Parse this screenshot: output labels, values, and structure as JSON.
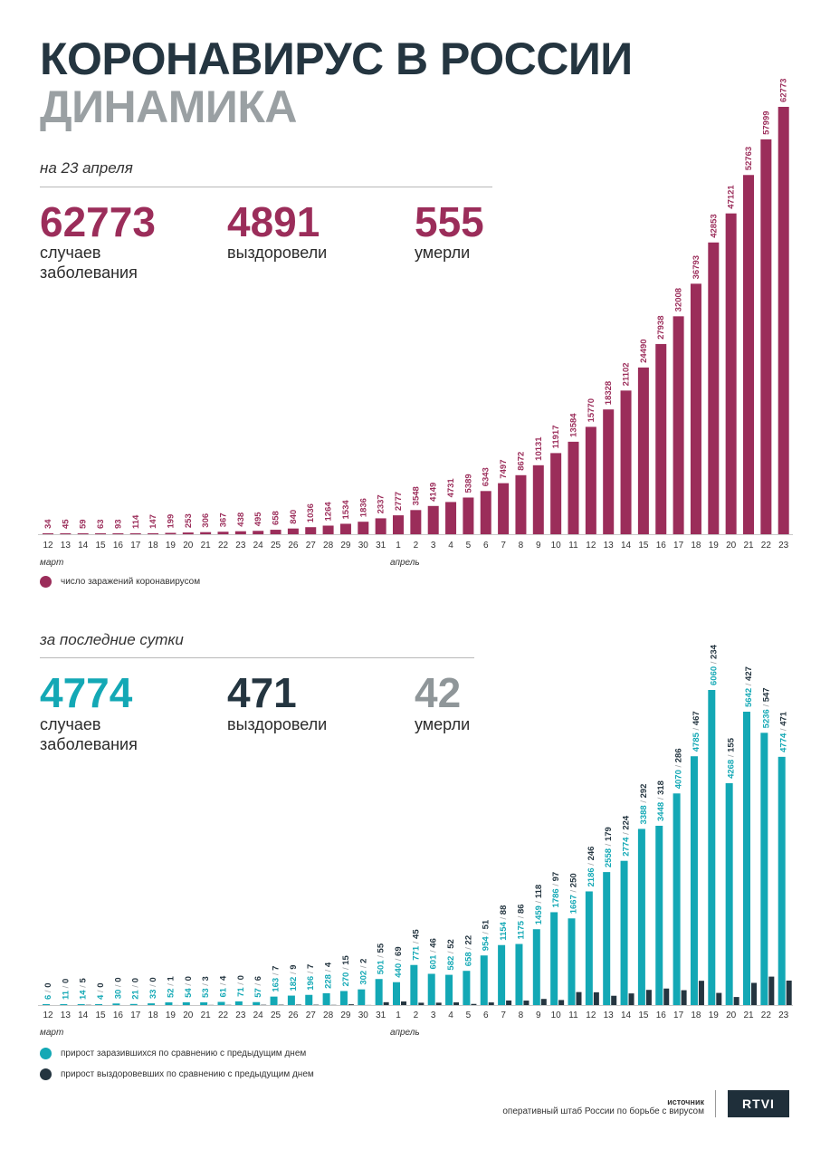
{
  "header": {
    "title": "КОРОНАВИРУС В РОССИИ",
    "subtitle": "ДИНАМИКА"
  },
  "colors": {
    "cases": "#9b2d5a",
    "daily_cases": "#13a8b5",
    "daily_recovered": "#243540",
    "dark": "#243540",
    "gray": "#8f9699"
  },
  "totals": {
    "label": "на 23 апреля",
    "cases_value": "62773",
    "cases_label_1": "случаев",
    "cases_label_2": "заболевания",
    "recovered_value": "4891",
    "recovered_label": "выздоровели",
    "deaths_value": "555",
    "deaths_label": "умерли"
  },
  "daily": {
    "label": "за последние сутки",
    "cases_value": "4774",
    "cases_label_1": "случаев",
    "cases_label_2": "заболевания",
    "recovered_value": "471",
    "recovered_label": "выздоровели",
    "deaths_value": "42",
    "deaths_label": "умерли"
  },
  "chart_data": [
    {
      "type": "bar",
      "categories": [
        "12",
        "13",
        "14",
        "15",
        "16",
        "17",
        "18",
        "19",
        "20",
        "21",
        "22",
        "23",
        "24",
        "25",
        "26",
        "27",
        "28",
        "29",
        "30",
        "31",
        "1",
        "2",
        "3",
        "4",
        "5",
        "6",
        "7",
        "8",
        "9",
        "10",
        "11",
        "12",
        "13",
        "14",
        "15",
        "16",
        "17",
        "18",
        "19",
        "20",
        "21",
        "22",
        "23"
      ],
      "month_labels": [
        "март",
        "апрель"
      ],
      "series": [
        {
          "name": "число заражений коронавирусом",
          "values": [
            34,
            45,
            59,
            63,
            93,
            114,
            147,
            199,
            253,
            306,
            367,
            438,
            495,
            658,
            840,
            1036,
            1264,
            1534,
            1836,
            2337,
            2777,
            3548,
            4149,
            4731,
            5389,
            6343,
            7497,
            8672,
            10131,
            11917,
            13584,
            15770,
            18328,
            21102,
            24490,
            27938,
            32008,
            36793,
            42853,
            47121,
            52763,
            57999,
            62773
          ]
        }
      ],
      "ylim": [
        0,
        62773
      ]
    },
    {
      "type": "bar",
      "categories": [
        "12",
        "13",
        "14",
        "15",
        "16",
        "17",
        "18",
        "19",
        "20",
        "21",
        "22",
        "23",
        "24",
        "25",
        "26",
        "27",
        "28",
        "29",
        "30",
        "31",
        "1",
        "2",
        "3",
        "4",
        "5",
        "6",
        "7",
        "8",
        "9",
        "10",
        "11",
        "12",
        "13",
        "14",
        "15",
        "16",
        "17",
        "18",
        "19",
        "20",
        "21",
        "22",
        "23"
      ],
      "month_labels": [
        "март",
        "апрель"
      ],
      "separator": "/",
      "series": [
        {
          "name": "прирост заразившихся по сравнению с предыдущим днем",
          "values": [
            6,
            11,
            14,
            4,
            30,
            21,
            33,
            52,
            54,
            53,
            61,
            71,
            57,
            163,
            182,
            196,
            228,
            270,
            302,
            501,
            440,
            771,
            601,
            582,
            658,
            954,
            1154,
            1175,
            1459,
            1786,
            1667,
            2186,
            2558,
            2774,
            3388,
            3448,
            4070,
            4785,
            6060,
            4268,
            5642,
            5236,
            4774
          ]
        },
        {
          "name": "прирост выздоровевших по сравнению с предыдущим днем",
          "values": [
            0,
            0,
            5,
            0,
            0,
            0,
            0,
            1,
            0,
            3,
            4,
            0,
            6,
            7,
            9,
            7,
            4,
            15,
            2,
            55,
            69,
            45,
            46,
            52,
            22,
            51,
            88,
            86,
            118,
            97,
            250,
            246,
            179,
            224,
            292,
            318,
            286,
            467,
            234,
            155,
            427,
            547,
            471
          ]
        }
      ],
      "ylim": [
        0,
        6060
      ]
    }
  ],
  "source": {
    "title": "источник",
    "text": "оперативный штаб России по борьбе с вирусом"
  },
  "logo": {
    "text": "RTVI"
  }
}
